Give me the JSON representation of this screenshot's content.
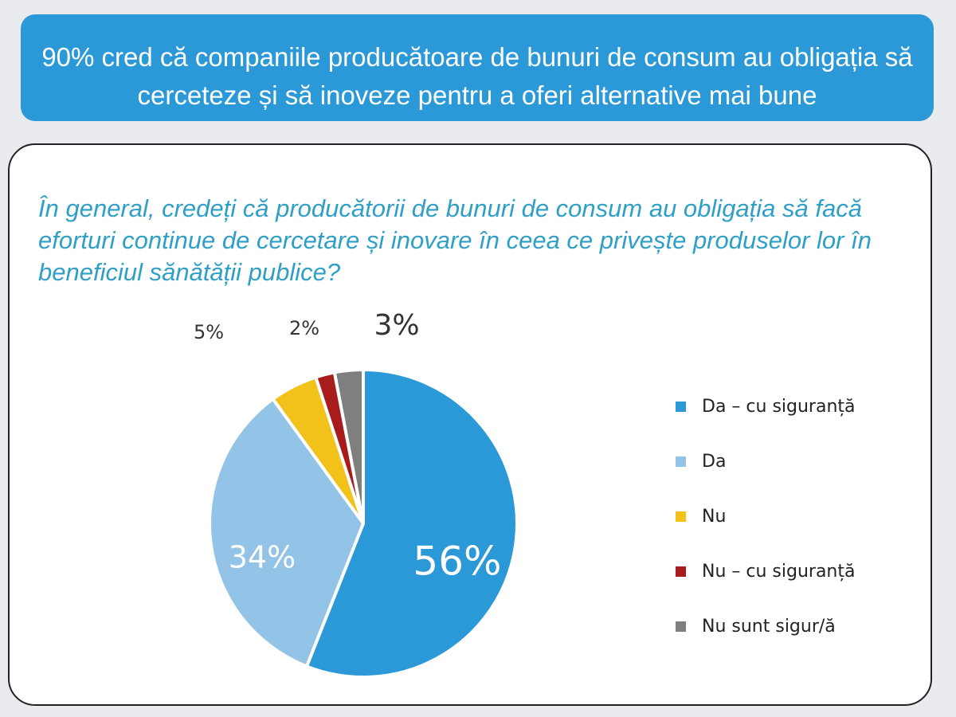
{
  "banner": {
    "title": "90% cred că companiile producătoare de bunuri de consum au obligația să cerceteze și să inoveze pentru a oferi alternative mai bune"
  },
  "question": "În general, credeți că producătorii de bunuri de consum au obligația să facă eforturi continue de cercetare și inovare în ceea ce privește produselor lor în beneficiul sănătății publice?",
  "chart_data": {
    "type": "pie",
    "title": "",
    "slices": [
      {
        "label": "Da – cu siguranță",
        "value": 56,
        "value_label": "56%",
        "color": "#2b98d8"
      },
      {
        "label": "Da",
        "value": 34,
        "value_label": "34%",
        "color": "#93c3e6"
      },
      {
        "label": "Nu",
        "value": 5,
        "value_label": "5%",
        "color": "#f2c21b"
      },
      {
        "label": "Nu – cu siguranță",
        "value": 2,
        "value_label": "2%",
        "color": "#a81c1c"
      },
      {
        "label": "Nu sunt sigur/ă",
        "value": 3,
        "value_label": "3%",
        "color": "#7f7f7f"
      }
    ],
    "start_angle": "12 o'clock",
    "direction": "clockwise",
    "legend_position": "right"
  }
}
